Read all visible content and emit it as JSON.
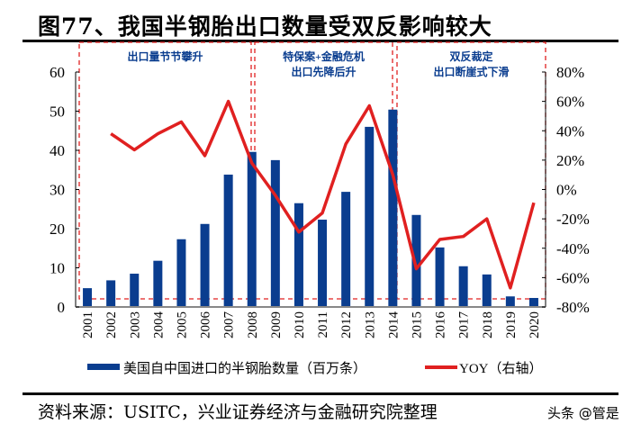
{
  "title": "图77、我国半钢胎出口数量受双反影响较大",
  "source": "资料来源：USITC，兴业证券经济与金融研究院整理",
  "watermark": "头条 @管是",
  "chart_data": {
    "type": "bar+line",
    "categories": [
      "2001",
      "2002",
      "2003",
      "2004",
      "2005",
      "2006",
      "2007",
      "2008",
      "2009",
      "2010",
      "2011",
      "2012",
      "2013",
      "2014",
      "2015",
      "2016",
      "2017",
      "2018",
      "2019",
      "2020"
    ],
    "series": [
      {
        "name": "美国自中国进口的半钢胎数量（百万条）",
        "type": "bar",
        "axis": "left",
        "color": "#0a3d8f",
        "values": [
          4.8,
          6.8,
          8.5,
          11.8,
          17.3,
          21.2,
          33.8,
          39.6,
          37.5,
          26.5,
          22.3,
          29.4,
          46.0,
          50.4,
          23.5,
          15.2,
          10.4,
          8.3,
          2.7,
          2.3
        ]
      },
      {
        "name": "YOY（右轴）",
        "type": "line",
        "axis": "right",
        "color": "#e02020",
        "values": [
          null,
          38,
          27,
          38,
          46,
          23,
          60,
          18,
          -4,
          -29,
          -16,
          31,
          57,
          10,
          -54,
          -34,
          -32,
          -20,
          -67,
          -9
        ]
      }
    ],
    "left_axis": {
      "min": 0,
      "max": 60,
      "ticks": [
        "0",
        "10",
        "20",
        "30",
        "40",
        "50",
        "60"
      ]
    },
    "right_axis": {
      "min": -80,
      "max": 80,
      "ticks": [
        "-80%",
        "-60%",
        "-40%",
        "-20%",
        "0%",
        "20%",
        "40%",
        "60%",
        "80%"
      ]
    },
    "annotations": [
      {
        "from": "2001",
        "to": "2008",
        "lines": [
          "出口量节节攀升"
        ]
      },
      {
        "from": "2008",
        "to": "2014",
        "lines": [
          "特保案+金融危机",
          "出口先降后升"
        ]
      },
      {
        "from": "2014",
        "to": "2020",
        "lines": [
          "双反裁定",
          "出口断崖式下滑"
        ]
      }
    ],
    "legend": [
      "美国自中国进口的半钢胎数量（百万条）",
      "YOY（右轴）"
    ],
    "legend_position": "bottom",
    "grid": false
  }
}
